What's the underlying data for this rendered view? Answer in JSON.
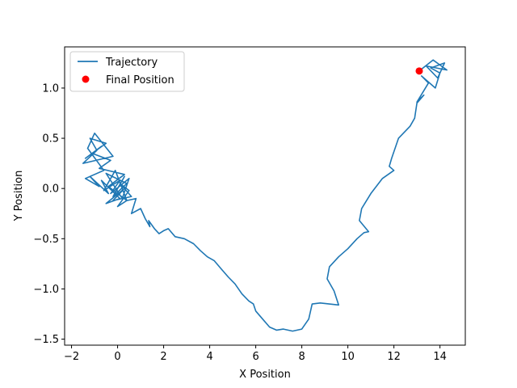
{
  "chart_data": {
    "type": "line",
    "xlabel": "X Position",
    "ylabel": "Y Position",
    "xlim": [
      -2.3,
      15.1
    ],
    "ylim": [
      -1.56,
      1.41
    ],
    "xticks": [
      -2,
      0,
      2,
      4,
      6,
      8,
      10,
      12,
      14
    ],
    "yticks": [
      -1.5,
      -1.0,
      -0.5,
      0.0,
      0.5,
      1.0
    ],
    "ytick_labels": [
      "−1.5",
      "−1.0",
      "−0.5",
      "0.0",
      "0.5",
      "1.0"
    ],
    "xtick_labels": [
      "−2",
      "0",
      "2",
      "4",
      "6",
      "8",
      "10",
      "12",
      "14"
    ],
    "grid": false,
    "legend_placement": "upper-left",
    "series": [
      {
        "name": "Trajectory",
        "kind": "line",
        "color": "#1f77b4",
        "x": [
          0.0,
          0.3,
          -0.2,
          0.4,
          -0.5,
          0.2,
          0.5,
          -0.3,
          0.1,
          -0.6,
          -0.1,
          0.4,
          -0.4,
          0.3,
          -0.8,
          -0.3,
          -1.1,
          -0.7,
          -1.4,
          -0.5,
          -1.2,
          -0.9,
          -1.5,
          -0.2,
          -1.0,
          -1.3,
          -0.6,
          -1.4,
          -0.8,
          -1.2,
          -0.4,
          -0.7,
          0.1,
          -0.5,
          0.3,
          -0.2,
          0.6,
          0.1,
          0.5,
          0.0,
          0.4,
          0.8,
          0.6,
          1.0,
          1.2,
          1.4,
          1.35,
          1.6,
          1.8,
          2.0,
          2.2,
          2.5,
          2.9,
          3.3,
          3.6,
          3.9,
          4.2,
          4.5,
          4.8,
          5.1,
          5.4,
          5.7,
          5.9,
          6.0,
          6.3,
          6.6,
          6.9,
          7.2,
          7.6,
          8.0,
          8.3,
          8.45,
          8.8,
          9.2,
          9.6,
          9.4,
          9.1,
          9.2,
          9.6,
          10.0,
          10.4,
          10.7,
          10.9,
          10.5,
          10.6,
          11.0,
          11.5,
          12.0,
          11.8,
          11.9,
          12.2,
          12.7,
          12.9,
          13.0,
          13.3,
          13.0,
          13.5,
          13.2,
          13.8,
          14.0,
          13.6,
          14.2,
          13.9,
          13.4,
          14.3,
          13.7,
          13.1
        ],
        "y": [
          0.0,
          0.12,
          -0.08,
          0.05,
          0.15,
          -0.1,
          0.1,
          -0.05,
          0.08,
          -0.02,
          0.18,
          -0.12,
          0.02,
          0.14,
          0.2,
          0.28,
          0.35,
          0.42,
          0.3,
          0.45,
          0.5,
          0.38,
          0.25,
          0.32,
          0.55,
          0.4,
          0.18,
          0.1,
          0.02,
          0.12,
          -0.05,
          0.08,
          -0.1,
          -0.15,
          0.0,
          -0.12,
          -0.08,
          0.05,
          -0.02,
          -0.18,
          -0.12,
          -0.1,
          -0.25,
          -0.2,
          -0.3,
          -0.38,
          -0.32,
          -0.4,
          -0.45,
          -0.42,
          -0.4,
          -0.48,
          -0.5,
          -0.55,
          -0.62,
          -0.68,
          -0.72,
          -0.8,
          -0.88,
          -0.95,
          -1.05,
          -1.12,
          -1.15,
          -1.22,
          -1.3,
          -1.38,
          -1.41,
          -1.4,
          -1.42,
          -1.4,
          -1.3,
          -1.15,
          -1.14,
          -1.15,
          -1.16,
          -1.02,
          -0.9,
          -0.78,
          -0.68,
          -0.6,
          -0.5,
          -0.44,
          -0.43,
          -0.32,
          -0.2,
          -0.05,
          0.1,
          0.18,
          0.22,
          0.3,
          0.5,
          0.62,
          0.7,
          0.85,
          0.93,
          0.86,
          1.05,
          1.12,
          1.0,
          1.15,
          1.2,
          1.25,
          1.1,
          1.22,
          1.18,
          1.28,
          1.17
        ]
      },
      {
        "name": "Final Position",
        "kind": "scatter",
        "color": "#ff0000",
        "x": [
          13.1
        ],
        "y": [
          1.17
        ]
      }
    ]
  }
}
